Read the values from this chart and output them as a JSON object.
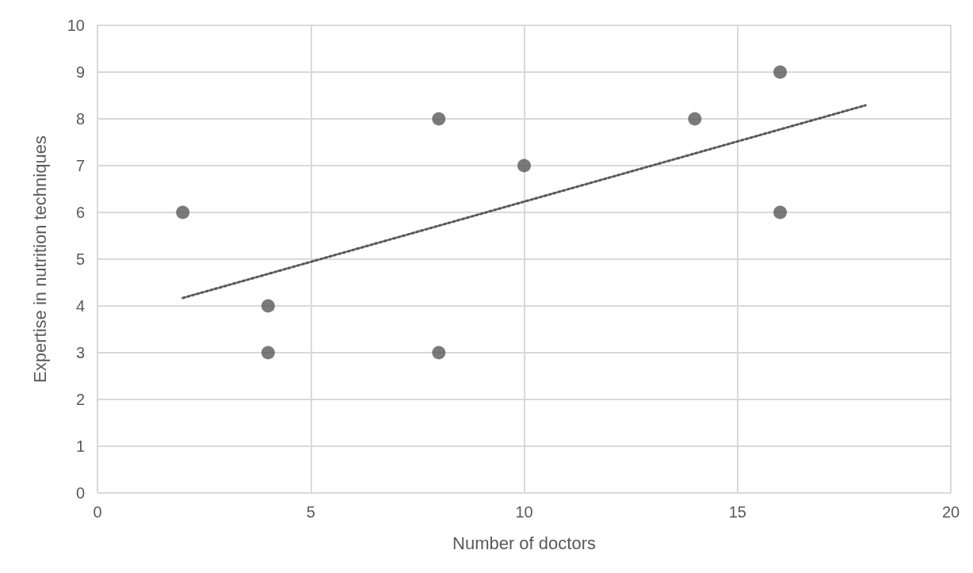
{
  "chart_data": {
    "type": "scatter",
    "xlabel": "Number of doctors",
    "ylabel": "Expertise in nutrition techniques",
    "series": [
      {
        "color": "#595959",
        "marker": "circle",
        "x": [
          2,
          4,
          4,
          8,
          8,
          10,
          14,
          16,
          16
        ],
        "values": [
          6,
          4,
          3,
          8,
          3,
          7,
          8,
          9,
          6
        ]
      },
      {
        "type": "line",
        "color": "#595959",
        "marker": "none",
        "line_style": "dotted",
        "x": [
          2,
          18
        ],
        "values": [
          4.17,
          8.29
        ]
      }
    ],
    "xlim": [
      0,
      20
    ],
    "xticks": [
      0,
      5,
      10,
      15,
      20
    ],
    "ylim": [
      0,
      10
    ],
    "yticks": [
      0,
      1,
      2,
      3,
      4,
      5,
      6,
      7,
      8,
      9,
      10
    ],
    "grid": true
  }
}
